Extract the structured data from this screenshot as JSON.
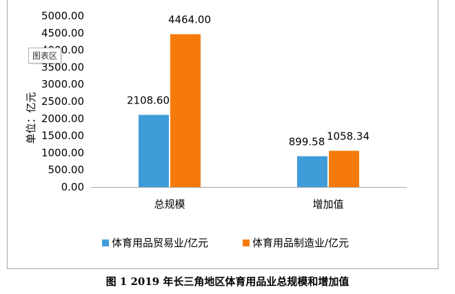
{
  "tooltip": "图表区",
  "caption": "图 1 2019 年长三角地区体育用品业总规模和增加值",
  "chart_data": {
    "type": "bar",
    "categories": [
      "总规模",
      "增加值"
    ],
    "series": [
      {
        "name": "体育用品贸易业/亿元",
        "values": [
          2108.6,
          899.58
        ],
        "labels": [
          "2108.60",
          "899.58"
        ],
        "color": "#409cd9"
      },
      {
        "name": "体育用品制造业/亿元",
        "values": [
          4464.0,
          1058.34
        ],
        "labels": [
          "4464.00",
          "1058.34"
        ],
        "color": "#f67a0a"
      }
    ],
    "ylabel": "单位：亿元",
    "ylim": [
      0,
      5000
    ],
    "yticks": [
      "0.00",
      "500.00",
      "1000.00",
      "1500.00",
      "2000.00",
      "2500.00",
      "3000.00",
      "3500.00",
      "4000.00",
      "4500.00",
      "5000.00"
    ],
    "grid": false,
    "legend": "bottom"
  }
}
